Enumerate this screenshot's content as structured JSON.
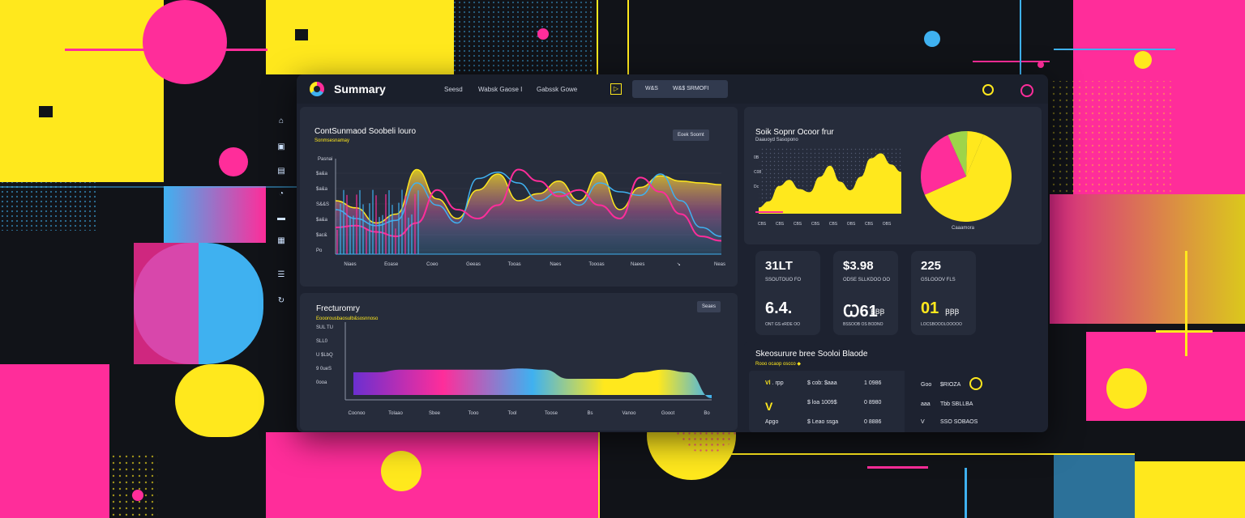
{
  "colors": {
    "magenta": "#ff2d9a",
    "yellow": "#ffe81d",
    "cyan": "#3fb1f0",
    "panel": "#262c3b",
    "bg": "#111318"
  },
  "app": {
    "title": "Summary",
    "nav": [
      "Seesd",
      "Wabsk Gaose  I",
      "Gabssk Gowe"
    ],
    "nav_icon": "▷",
    "top_button": [
      "W&S",
      "W&$ SRMOFI"
    ]
  },
  "sidebar": {
    "icons": [
      "home-icon",
      "calendar-icon",
      "image-icon",
      "gauge-icon",
      "folder-icon",
      "gallery-icon",
      "document-icon",
      "refresh-icon"
    ]
  },
  "main_chart": {
    "title": "ContSunmaod Soobeli louro",
    "subtitle": "Sonmsesnamay",
    "button": "Eoek Soomt",
    "y_title": "Pasnai",
    "y_ticks": [
      "$a&a",
      "$a&a",
      "S&&S",
      "$a&a",
      "$ac&",
      "Po"
    ],
    "x_ticks": [
      "Niaes",
      "Eoase",
      "Coeo",
      "Geeas",
      "Tooas",
      "Naes",
      "Toooas",
      "Naees",
      "↘",
      "Neas"
    ]
  },
  "chart_data": [
    {
      "type": "area",
      "title": "ContSunmaod Soobeli louro",
      "x_ticks": [
        "Niaes",
        "Eoase",
        "Coeo",
        "Geeas",
        "Tooas",
        "Naes",
        "Toooas",
        "Naees",
        "↘",
        "Neas"
      ],
      "series": [
        {
          "values": [
            60,
            52,
            35,
            45,
            95,
            62,
            40,
            72,
            90,
            60,
            68,
            82,
            60,
            92,
            50,
            75,
            88,
            82,
            80,
            78
          ]
        },
        {
          "values": [
            50,
            40,
            32,
            38,
            80,
            55,
            35,
            85,
            92,
            80,
            60,
            70,
            55,
            80,
            70,
            66,
            90,
            60,
            30,
            20
          ]
        },
        {
          "values": [
            30,
            32,
            25,
            20,
            35,
            72,
            50,
            40,
            55,
            95,
            82,
            65,
            72,
            55,
            40,
            86,
            70,
            45,
            20,
            15
          ]
        }
      ]
    },
    {
      "type": "area",
      "title": "Soik Sopnr Ocoor frur",
      "y_ticks": [
        "0B",
        "C08",
        "Dc"
      ],
      "x_ticks": [
        "CBS",
        "CBS",
        "CBS",
        "CBS",
        "CBS",
        "OBS",
        "CBS",
        "OBS"
      ],
      "values": [
        10,
        20,
        45,
        55,
        40,
        35,
        60,
        78,
        52,
        38,
        60,
        90,
        98,
        80,
        68
      ]
    },
    {
      "type": "pie",
      "label": "Caaamora",
      "slices": [
        {
          "value": 62,
          "color": "#ffe81d"
        },
        {
          "value": 25,
          "color": "#ff2d9a"
        },
        {
          "value": 7,
          "color": "#9dd44a"
        },
        {
          "value": 6,
          "color": "#ffe81d"
        }
      ]
    },
    {
      "type": "area",
      "title": "Frecturomry",
      "y_ticks": [
        "SUL TU",
        "SLL0",
        "U $LbQ",
        "9 0ueS",
        "0ooa"
      ],
      "x_ticks": [
        "Coonoo",
        "Tolaao",
        "Sbee",
        "Tooo",
        "Tool",
        "Toose",
        "Bs",
        "Vanoo",
        "Gooot",
        "Bo"
      ],
      "values": [
        60,
        60,
        62,
        62,
        62,
        62,
        62,
        63,
        62,
        55,
        55,
        55,
        60,
        62,
        60,
        40
      ]
    }
  ],
  "panels": {
    "front": {
      "title": "Frecturomry",
      "subtitle": "Eooorousbaosulb&sosnnoso",
      "button": "Seaes"
    },
    "right_top": {
      "title": "Soik Sopnr Ocoor frur",
      "subtitle": "Daauoyd Sasopono",
      "pie_label": "Caaamora"
    }
  },
  "kpis": [
    {
      "v1": "31LT",
      "l1": "SSOUTOUO FO",
      "v2": "6.4.",
      "l2": "ONT GS eRDE OO"
    },
    {
      "v1": "$3.98",
      "l1": "ODSE SLLKDOO OO",
      "v2": "Ꞷ61",
      "l2": "BSSOOB OS BODNO",
      "v2_extra": "ꞴꞴꞴ"
    },
    {
      "v1": "225",
      "l1": "GSLOOOV FLS",
      "v2": "01",
      "l2": "LOCSBOOOLOOOOO",
      "v2_extra": "ꞴꞴꞴ"
    }
  ],
  "table": {
    "title": "Skeosurure bree Sooloi Blaode",
    "subtitle": "Rooo ocaop oscco ◆",
    "left": [
      [
        "Vl",
        ". rpp"
      ],
      [
        "V",
        ""
      ],
      [
        "Apgo",
        ""
      ]
    ],
    "mid": [
      [
        "$ cob: $aaa",
        "1 0986"
      ],
      [
        "$ loa 1009$",
        "0 8980"
      ],
      [
        "$ Leao ssga",
        "0 8886"
      ]
    ],
    "right": [
      [
        "Goo",
        "$RIOZA",
        "circle"
      ],
      [
        "aaa",
        "Tbb SBLLBA",
        ""
      ],
      [
        "V",
        "SSO SOBAOS",
        ""
      ]
    ]
  }
}
